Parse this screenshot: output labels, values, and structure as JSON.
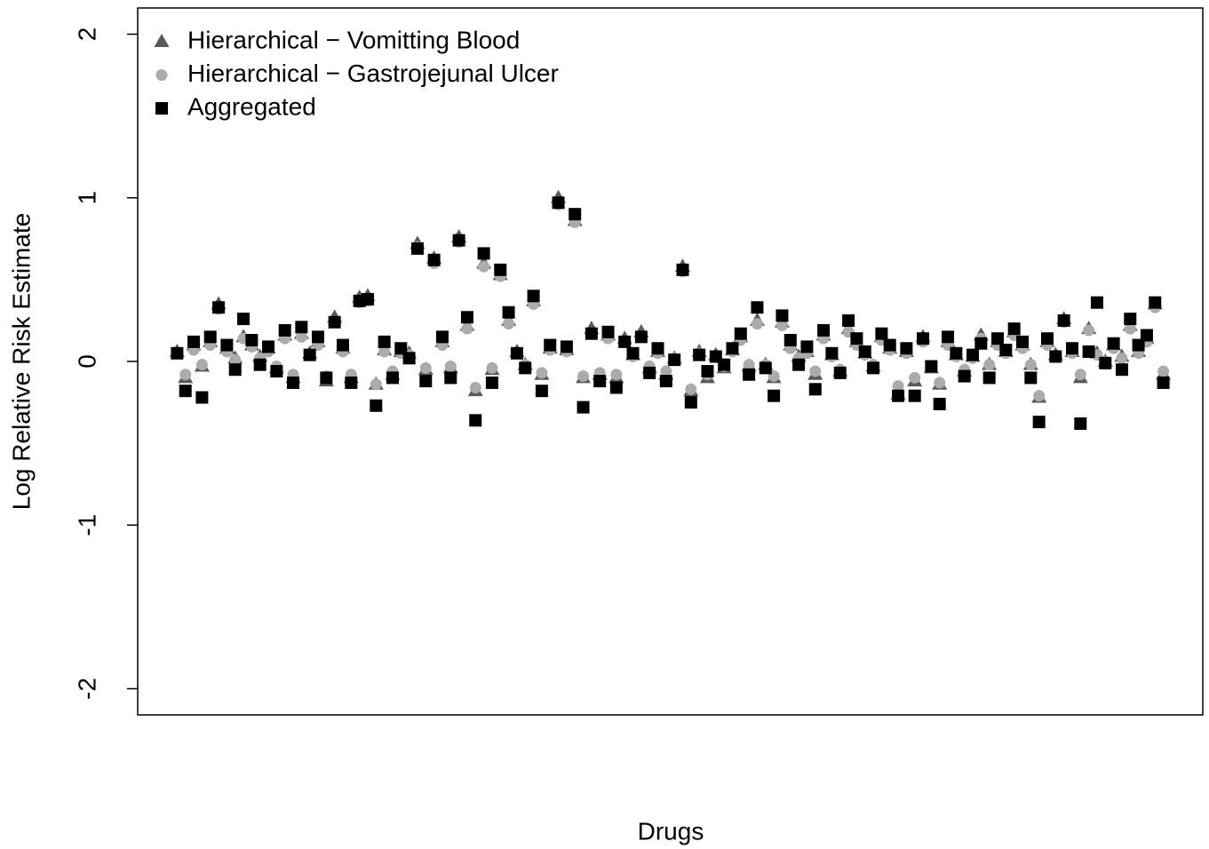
{
  "chart_data": {
    "type": "scatter",
    "x_label": "Drugs",
    "y_label": "Log Relative Risk Estimate",
    "legend": "topleft",
    "xlim": [
      -3.76,
      124.76
    ],
    "ylim": [
      -2.16,
      2.16
    ],
    "yticks": [
      -2,
      -1,
      0,
      1,
      2
    ],
    "x": [
      1,
      2,
      3,
      4,
      5,
      6,
      7,
      8,
      9,
      10,
      11,
      12,
      13,
      14,
      15,
      16,
      17,
      18,
      19,
      20,
      21,
      22,
      23,
      24,
      25,
      26,
      27,
      28,
      29,
      30,
      31,
      32,
      33,
      34,
      35,
      36,
      37,
      38,
      39,
      40,
      41,
      42,
      43,
      44,
      45,
      46,
      47,
      48,
      49,
      50,
      51,
      52,
      53,
      54,
      55,
      56,
      57,
      58,
      59,
      60,
      61,
      62,
      63,
      64,
      65,
      66,
      67,
      68,
      69,
      70,
      71,
      72,
      73,
      74,
      75,
      76,
      77,
      78,
      79,
      80,
      81,
      82,
      83,
      84,
      85,
      86,
      87,
      88,
      89,
      90,
      91,
      92,
      93,
      94,
      95,
      96,
      97,
      98,
      99,
      100,
      101,
      102,
      103,
      104,
      105,
      106,
      107,
      108,
      109,
      110,
      111,
      112,
      113,
      114,
      115,
      116,
      117,
      118,
      119,
      120
    ],
    "series": [
      {
        "name": "Hierarchical − Vomitting Blood",
        "color": "#5a5a5a",
        "marker": "triangle",
        "values": [
          0.06,
          -0.1,
          0.1,
          -0.03,
          0.12,
          0.35,
          0.08,
          0.02,
          0.15,
          0.1,
          0.03,
          0.08,
          -0.04,
          0.16,
          -0.1,
          0.17,
          0.05,
          0.12,
          -0.12,
          0.27,
          0.08,
          -0.1,
          0.39,
          0.4,
          -0.14,
          0.07,
          -0.08,
          0.06,
          0.05,
          0.72,
          -0.05,
          0.63,
          0.12,
          -0.04,
          0.76,
          0.22,
          -0.18,
          0.6,
          -0.05,
          0.53,
          0.25,
          0.06,
          -0.02,
          0.37,
          -0.08,
          0.08,
          1.0,
          0.07,
          0.86,
          -0.1,
          0.2,
          -0.08,
          0.16,
          -0.1,
          0.14,
          0.04,
          0.18,
          -0.04,
          0.06,
          -0.08,
          0.02,
          0.58,
          -0.18,
          0.06,
          -0.1,
          0.04,
          -0.04,
          0.07,
          0.15,
          -0.03,
          0.25,
          -0.02,
          -0.1,
          0.24,
          0.1,
          0.03,
          0.06,
          -0.08,
          0.16,
          0.04,
          -0.06,
          0.2,
          0.12,
          0.05,
          -0.03,
          0.15,
          0.08,
          -0.2,
          0.06,
          -0.12,
          0.15,
          -0.04,
          -0.14,
          0.12,
          0.04,
          -0.06,
          0.03,
          0.16,
          -0.02,
          0.12,
          0.06,
          0.18,
          0.1,
          -0.02,
          -0.22,
          0.12,
          0.04,
          0.26,
          0.06,
          -0.1,
          0.2,
          0.05,
          0.0,
          0.1,
          0.03,
          0.22,
          0.06,
          0.14,
          0.35,
          -0.08
        ]
      },
      {
        "name": "Hierarchical − Gastrojejunal Ulcer",
        "color": "#ababab",
        "marker": "circle",
        "values": [
          0.05,
          -0.08,
          0.07,
          -0.02,
          0.1,
          0.32,
          0.06,
          0.01,
          0.14,
          0.09,
          0.02,
          0.06,
          -0.03,
          0.14,
          -0.08,
          0.15,
          0.04,
          0.1,
          -0.09,
          0.24,
          0.06,
          -0.08,
          0.36,
          0.37,
          -0.14,
          0.06,
          -0.06,
          0.05,
          0.04,
          0.7,
          -0.04,
          0.6,
          0.1,
          -0.03,
          0.73,
          0.2,
          -0.16,
          0.58,
          -0.04,
          0.52,
          0.23,
          0.05,
          -0.02,
          0.35,
          -0.07,
          0.07,
          0.96,
          0.06,
          0.85,
          -0.09,
          0.17,
          -0.07,
          0.14,
          -0.08,
          0.12,
          0.03,
          0.15,
          -0.03,
          0.05,
          -0.06,
          0.02,
          0.55,
          -0.17,
          0.05,
          -0.08,
          0.03,
          -0.03,
          0.06,
          0.13,
          -0.02,
          0.23,
          -0.02,
          -0.09,
          0.22,
          0.08,
          0.02,
          0.05,
          -0.06,
          0.14,
          0.03,
          -0.05,
          0.18,
          0.1,
          0.04,
          -0.02,
          0.13,
          0.07,
          -0.15,
          0.05,
          -0.1,
          0.12,
          -0.03,
          -0.13,
          0.1,
          0.03,
          -0.05,
          0.02,
          0.14,
          -0.02,
          0.1,
          0.05,
          0.16,
          0.08,
          -0.02,
          -0.21,
          0.1,
          0.03,
          0.24,
          0.05,
          -0.08,
          0.19,
          0.04,
          0.0,
          0.08,
          0.02,
          0.2,
          0.05,
          0.12,
          0.33,
          -0.06
        ]
      },
      {
        "name": "Aggregated",
        "color": "#000000",
        "marker": "square",
        "values": [
          0.05,
          -0.18,
          0.12,
          -0.22,
          0.15,
          0.33,
          0.1,
          -0.05,
          0.26,
          0.13,
          -0.02,
          0.09,
          -0.06,
          0.19,
          -0.13,
          0.21,
          0.04,
          0.15,
          -0.1,
          0.24,
          0.1,
          -0.13,
          0.37,
          0.38,
          -0.27,
          0.12,
          -0.1,
          0.08,
          0.02,
          0.69,
          -0.12,
          0.62,
          0.15,
          -0.1,
          0.74,
          0.27,
          -0.36,
          0.66,
          -0.13,
          0.56,
          0.3,
          0.05,
          -0.04,
          0.4,
          -0.18,
          0.1,
          0.97,
          0.09,
          0.9,
          -0.28,
          0.17,
          -0.12,
          0.18,
          -0.16,
          0.12,
          0.05,
          0.15,
          -0.07,
          0.08,
          -0.12,
          0.01,
          0.56,
          -0.25,
          0.04,
          -0.06,
          0.03,
          -0.02,
          0.08,
          0.17,
          -0.08,
          0.33,
          -0.04,
          -0.21,
          0.28,
          0.13,
          -0.02,
          0.09,
          -0.17,
          0.19,
          0.05,
          -0.07,
          0.25,
          0.14,
          0.06,
          -0.04,
          0.17,
          0.1,
          -0.21,
          0.08,
          -0.21,
          0.14,
          -0.03,
          -0.26,
          0.15,
          0.05,
          -0.09,
          0.04,
          0.11,
          -0.1,
          0.14,
          0.07,
          0.2,
          0.12,
          -0.1,
          -0.37,
          0.14,
          0.03,
          0.25,
          0.08,
          -0.38,
          0.06,
          0.36,
          -0.01,
          0.11,
          -0.05,
          0.26,
          0.1,
          0.16,
          0.36,
          -0.13
        ]
      }
    ]
  }
}
